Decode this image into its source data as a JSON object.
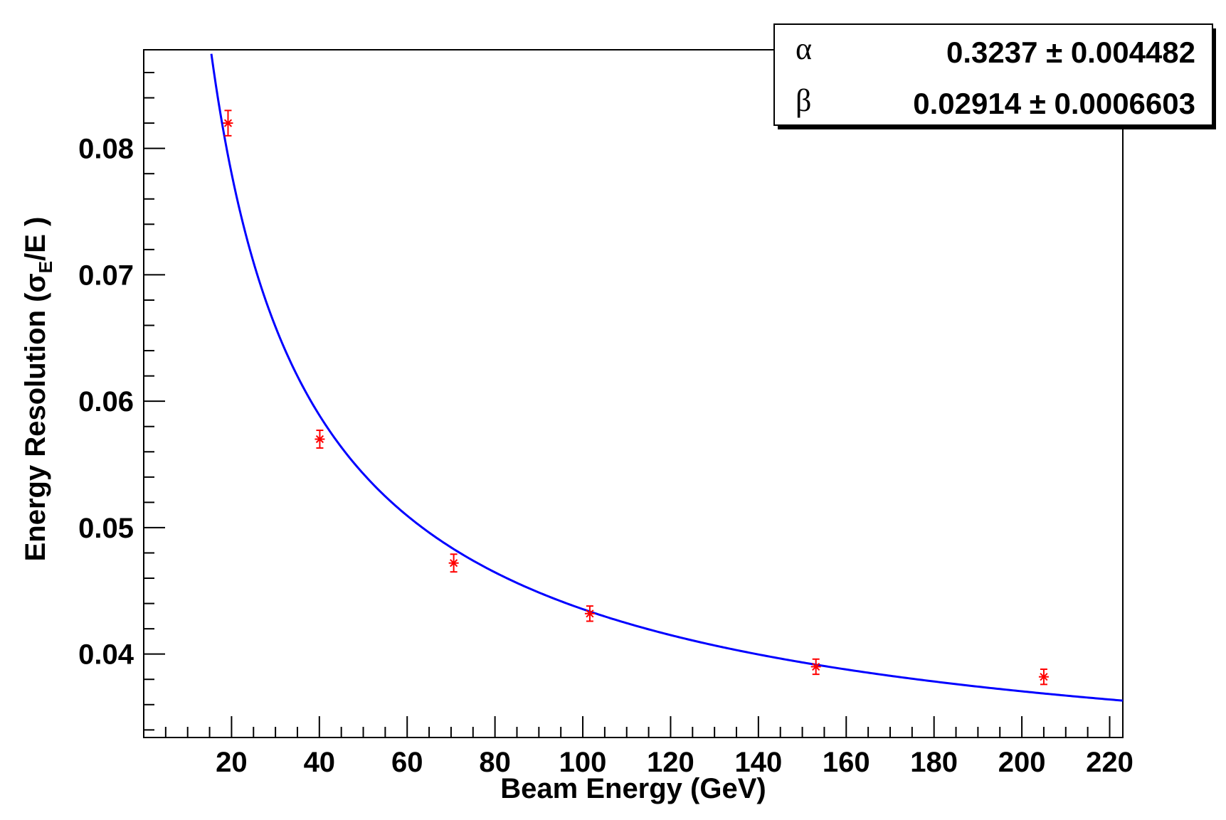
{
  "chart_data": {
    "type": "scatter",
    "xlabel": "Beam Energy (GeV)",
    "ylabel": {
      "prefix": "Energy Resolution (",
      "sigma": "σ",
      "subscript": "E",
      "suffix": "/E )"
    },
    "xlim": [
      0,
      223
    ],
    "ylim": [
      0.0334,
      0.0878
    ],
    "x_ticks": [
      20,
      40,
      60,
      80,
      100,
      120,
      140,
      160,
      180,
      200,
      220
    ],
    "x_tick_labels": [
      "20",
      "40",
      "60",
      "80",
      "100",
      "120",
      "140",
      "160",
      "180",
      "200",
      "220"
    ],
    "y_ticks": [
      0.04,
      0.05,
      0.06,
      0.07,
      0.08
    ],
    "y_tick_labels": [
      "0.04",
      "0.05",
      "0.06",
      "0.07",
      "0.08"
    ],
    "grid": false,
    "legend": "none",
    "series": [
      {
        "type": "scatter",
        "color": "#ff0000",
        "marker": "asterisk",
        "points": [
          {
            "x": 19.2,
            "y": 0.082,
            "yerr": 0.001
          },
          {
            "x": 40.1,
            "y": 0.057,
            "yerr": 0.0007
          },
          {
            "x": 70.6,
            "y": 0.0472,
            "yerr": 0.0007
          },
          {
            "x": 101.6,
            "y": 0.0432,
            "yerr": 0.0006
          },
          {
            "x": 153.1,
            "y": 0.039,
            "yerr": 0.0006
          },
          {
            "x": 205.0,
            "y": 0.0382,
            "yerr": 0.0006
          }
        ]
      },
      {
        "type": "fit-curve",
        "color": "#0000ff",
        "formula": "sqrt((alpha/sqrt(E))^2 + beta^2)",
        "params": {
          "alpha": 0.3237,
          "beta": 0.02914
        },
        "x_range": [
          15.4,
          223
        ]
      }
    ],
    "stats_box": {
      "position": "top-right",
      "rows": [
        {
          "name": "α",
          "value": "0.3237 ± 0.004482"
        },
        {
          "name": "β",
          "value": "0.02914 ± 0.0006603"
        }
      ]
    }
  }
}
